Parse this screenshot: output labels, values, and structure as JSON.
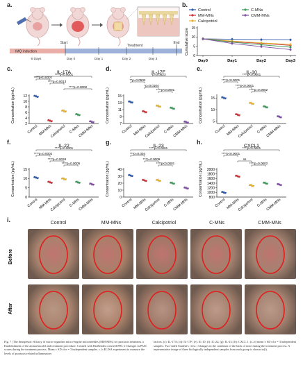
{
  "panels": {
    "a": "a.",
    "b": "b.",
    "c": "c.",
    "d": "d.",
    "e": "e.",
    "f": "f.",
    "g": "g.",
    "h": "h.",
    "i": "i."
  },
  "schematic": {
    "timeline_label_imq": "IMQ induction",
    "label_start": "Start",
    "label_treatment": "Treatment",
    "label_end": "End",
    "label_6days": "6 Days",
    "days": [
      "Day 0",
      "Day 1",
      "Day 2",
      "Day 3"
    ]
  },
  "legend_b": {
    "items": [
      {
        "name": "Control",
        "color": "#2e5aa8"
      },
      {
        "name": "C-MNs",
        "color": "#3d9a58"
      },
      {
        "name": "MM-MNs",
        "color": "#c8333a"
      },
      {
        "name": "CMM-MNs",
        "color": "#7f4fa3"
      },
      {
        "name": "Calcipotriol",
        "color": "#e2b233"
      }
    ]
  },
  "chart_data": [
    {
      "type": "line",
      "panel": "b",
      "ylabel": "Cumulative score",
      "x": [
        "Day0",
        "Day1",
        "Day2",
        "Day3"
      ],
      "ylim": [
        0,
        15
      ],
      "yticks": [
        0,
        5,
        10,
        15
      ],
      "series": [
        {
          "name": "Control",
          "values": [
            9,
            8.8,
            8.6,
            8.5
          ]
        },
        {
          "name": "MM-MNs",
          "values": [
            9,
            7.5,
            6.5,
            5.5
          ]
        },
        {
          "name": "Calcipotriol",
          "values": [
            9,
            7.8,
            6.8,
            6.0
          ]
        },
        {
          "name": "C-MNs",
          "values": [
            9,
            7.2,
            5.8,
            4.5
          ]
        },
        {
          "name": "CMM-MNs",
          "values": [
            9,
            6.5,
            4.8,
            3.2
          ]
        }
      ]
    },
    {
      "type": "scatter",
      "panel": "c",
      "title": "IL-17A",
      "ylabel": "Concentration (pg/mL)",
      "ylim": [
        2,
        12
      ],
      "yticks": [
        2,
        4,
        6,
        8,
        10,
        12
      ],
      "categories": [
        "Control",
        "MM-MNs",
        "Calcipotriol",
        "C-MNs",
        "CMM-MNs"
      ],
      "values": [
        11.8,
        3.0,
        6.5,
        5.2,
        2.6
      ],
      "annotations": [
        "****p<0.0001",
        "****p<0.0001",
        "****p=0.0013",
        "****p=0.0002"
      ]
    },
    {
      "type": "scatter",
      "panel": "d",
      "title": "IL-17F",
      "ylabel": "Concentration (pg/mL)",
      "ylim": [
        7,
        15
      ],
      "yticks": [
        7,
        9,
        11,
        13,
        15
      ],
      "categories": [
        "Control",
        "MM-MNs",
        "Calcipotriol",
        "C-MNs",
        "CMM-MNs"
      ],
      "values": [
        13.2,
        10.4,
        12.0,
        11.4,
        7.4
      ],
      "annotations": [
        "*p=0.0623",
        "**p=0.0502",
        "*p=0.0104",
        "****p<0.0001"
      ]
    },
    {
      "type": "scatter",
      "panel": "e",
      "title": "IL-10",
      "ylabel": "Concentration (pg/mL)",
      "ylim": [
        4,
        16
      ],
      "yticks": [
        5,
        10,
        15
      ],
      "categories": [
        "Control",
        "MM-MNs",
        "Calcipotriol",
        "C-MNs",
        "CMM-MNs"
      ],
      "values": [
        15.1,
        7.8,
        12.7,
        11.2,
        6.9
      ],
      "annotations": [
        "****p<0.0001",
        "****p<0.0001",
        "****p<0.0001",
        "****p=0.0002"
      ]
    },
    {
      "type": "scatter",
      "panel": "f",
      "title": "IL-22",
      "ylabel": "Concentration (pg/mL)",
      "ylim": [
        0,
        15
      ],
      "yticks": [
        0,
        5,
        10,
        15
      ],
      "categories": [
        "Control",
        "MM-MNs",
        "Calcipotriol",
        "C-MNs",
        "CMM-MNs"
      ],
      "values": [
        10.5,
        8.0,
        9.8,
        8.0,
        7.0
      ],
      "annotations": [
        "****p<0.0001",
        "****p=0.0002",
        "****p=0.0034",
        "****p=0.0005"
      ]
    },
    {
      "type": "scatter",
      "panel": "g",
      "title": "IL-23",
      "ylabel": "Concentration (pg/mL)",
      "ylim": [
        0,
        40
      ],
      "yticks": [
        0,
        10,
        20,
        30,
        40
      ],
      "categories": [
        "Control",
        "MM-MNs",
        "Calcipotriol",
        "C-MNs",
        "CMM-MNs"
      ],
      "values": [
        31,
        24,
        24,
        20,
        13
      ],
      "annotations": [
        "****p<0.0001",
        "***p=0.004",
        "***p=0.0006",
        "****p<0.0001"
      ]
    },
    {
      "type": "scatter",
      "panel": "h",
      "title": "CXCL1",
      "ylabel": "Concentration (pg/mL)",
      "ylim": [
        800,
        2000
      ],
      "yticks": [
        800,
        1000,
        1200,
        1400,
        1600,
        1800,
        2000
      ],
      "categories": [
        "Control",
        "MM-MNs",
        "Calcipotriol",
        "C-MNs",
        "CMM-MNs"
      ],
      "values": [
        1000,
        1700,
        1300,
        1400,
        1340
      ],
      "annotations": [
        "****p<0.0001",
        "****p<0.0001",
        "ns",
        "****p=0.0002"
      ]
    }
  ],
  "photos": {
    "columns": [
      "Control",
      "MM-MNs",
      "Calcipotriol",
      "C-MNs",
      "CMM-MNs"
    ],
    "rows": [
      "Before",
      "After"
    ]
  },
  "caption": {
    "left": "Fig. 7 | The therapeutic efficacy of micro-organism micro-engine microneedles (MM-MNs) for psoriasis treatment. a Establishment of the animal model and treatment procedure. Created with BioRender.com/a33f993. b Changes in PASI scores during the treatment process. Mean ± SD of n = 3 independent samples. c–h ELISA experiment to measure the levels of psoriasis-related inflammatory",
    "right": "factors. (c): IL-17A; (d): IL-17F; (e): IL-10; (f): IL-22; (g): IL-23; (h): CXCL 1; (c–h) mean ± SD of n = 3 independent samples. Two-sided Student's t test. i Changes in the condition of the back of mice during the treatment process. A representative image of three biologically independent samples from each group is shown in(i)."
  }
}
